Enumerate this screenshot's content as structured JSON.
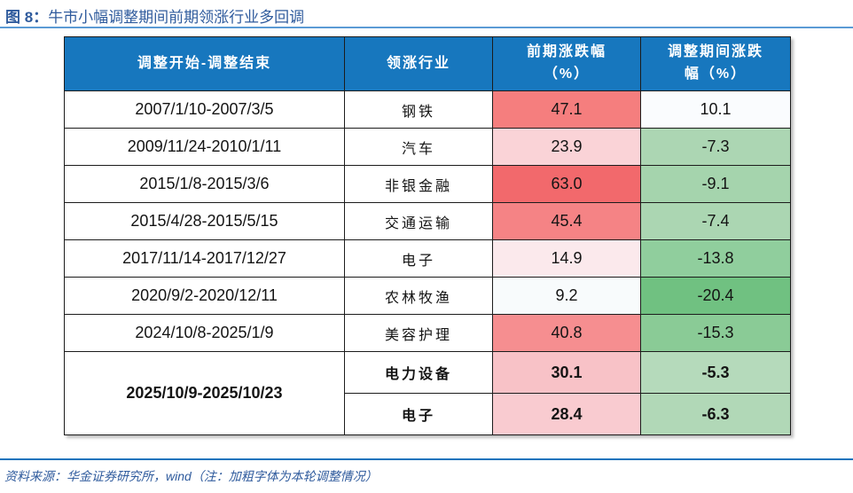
{
  "figure": {
    "label": "图 8：",
    "title": "牛市小幅调整期间前期领涨行业多回调"
  },
  "table": {
    "headers": [
      {
        "line1": "调整开始-调整结束",
        "line2": ""
      },
      {
        "line1": "领涨行业",
        "line2": ""
      },
      {
        "line1": "前期涨跌幅",
        "line2": "（%）"
      },
      {
        "line1": "调整期间涨跌",
        "line2": "幅（%）"
      }
    ],
    "rows": [
      {
        "period": "2007/1/10-2007/3/5",
        "industry": "钢铁",
        "prior": "47.1",
        "adjust": "10.1",
        "prior_bg": "#F57E7E",
        "adjust_bg": "#FAFCFE"
      },
      {
        "period": "2009/11/24-2010/1/11",
        "industry": "汽车",
        "prior": "23.9",
        "adjust": "-7.3",
        "prior_bg": "#FAD3D7",
        "adjust_bg": "#ACD6B3"
      },
      {
        "period": "2015/1/8-2015/3/6",
        "industry": "非银金融",
        "prior": "63.0",
        "adjust": "-9.1",
        "prior_bg": "#F2696C",
        "adjust_bg": "#A5D4AD"
      },
      {
        "period": "2015/4/28-2015/5/15",
        "industry": "交通运输",
        "prior": "45.4",
        "adjust": "-7.4",
        "prior_bg": "#F58385",
        "adjust_bg": "#ABD6B2"
      },
      {
        "period": "2017/11/14-2017/12/27",
        "industry": "电子",
        "prior": "14.9",
        "adjust": "-13.8",
        "prior_bg": "#FBE9EC",
        "adjust_bg": "#90CE9D"
      },
      {
        "period": "2020/9/2-2020/12/11",
        "industry": "农林牧渔",
        "prior": "9.2",
        "adjust": "-20.4",
        "prior_bg": "#F8FBFC",
        "adjust_bg": "#70C181"
      },
      {
        "period": "2024/10/8-2025/1/9",
        "industry": "美容护理",
        "prior": "40.8",
        "adjust": "-15.3",
        "prior_bg": "#F68E90",
        "adjust_bg": "#8ACB96"
      },
      {
        "period": "2025/10/9-2025/10/23",
        "industry": "电力设备",
        "prior": "30.1",
        "adjust": "-5.3",
        "prior_bg": "#F8C2C7",
        "adjust_bg": "#B5DABB"
      },
      {
        "period": "",
        "industry": "电子",
        "prior": "28.4",
        "adjust": "-6.3",
        "prior_bg": "#F9CBD0",
        "adjust_bg": "#B1D8B7"
      }
    ]
  },
  "source_note": "资料来源：华金证券研究所，wind（注：加粗字体为本轮调整情况）",
  "colors": {
    "header_bg": "#1777BE",
    "header_text": "#FFFFFF",
    "title_text": "#2F5B9D",
    "title_rule": "#5B9BD5",
    "footer_rule": "#1674BC",
    "table_border": "#1C1C1C"
  }
}
